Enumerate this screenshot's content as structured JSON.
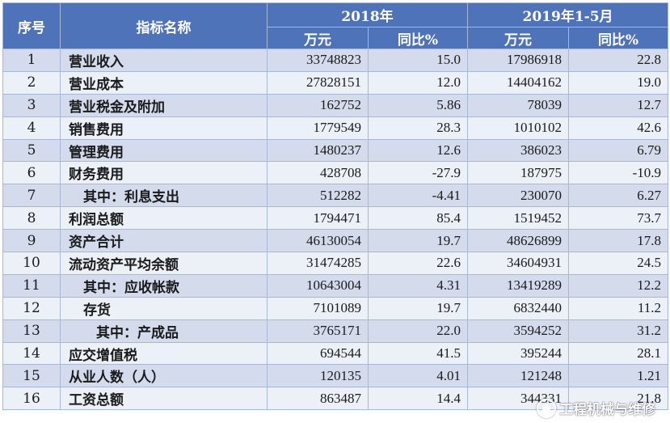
{
  "headers": {
    "seq": "序号",
    "name": "指标名称",
    "period1": "2018年",
    "period2": "2019年1-5月",
    "unit": "万元",
    "yoy": "同比%"
  },
  "rows": [
    {
      "idx": "1",
      "name": "营业收入",
      "level": 0,
      "v1": "33748823",
      "p1": "15.0",
      "v2": "17986918",
      "p2": "22.8"
    },
    {
      "idx": "2",
      "name": "营业成本",
      "level": 0,
      "v1": "27828151",
      "p1": "12.0",
      "v2": "14404162",
      "p2": "19.0"
    },
    {
      "idx": "3",
      "name": "营业税金及附加",
      "level": 0,
      "v1": "162752",
      "p1": "5.86",
      "v2": "78039",
      "p2": "12.7"
    },
    {
      "idx": "4",
      "name": "销售费用",
      "level": 0,
      "v1": "1779549",
      "p1": "28.3",
      "v2": "1010102",
      "p2": "42.6"
    },
    {
      "idx": "5",
      "name": "管理费用",
      "level": 0,
      "v1": "1480237",
      "p1": "12.6",
      "v2": "386023",
      "p2": "6.79"
    },
    {
      "idx": "6",
      "name": "财务费用",
      "level": 0,
      "v1": "428708",
      "p1": "-27.9",
      "v2": "187975",
      "p2": "-10.9"
    },
    {
      "idx": "7",
      "name": "其中：利息支出",
      "level": 1,
      "v1": "512282",
      "p1": "-4.41",
      "v2": "230070",
      "p2": "6.27"
    },
    {
      "idx": "8",
      "name": "利润总额",
      "level": 0,
      "v1": "1794471",
      "p1": "85.4",
      "v2": "1519452",
      "p2": "73.7"
    },
    {
      "idx": "9",
      "name": "资产合计",
      "level": 0,
      "v1": "46130054",
      "p1": "19.7",
      "v2": "48626899",
      "p2": "17.8"
    },
    {
      "idx": "10",
      "name": "流动资产平均余额",
      "level": 0,
      "v1": "31474285",
      "p1": "22.6",
      "v2": "34604931",
      "p2": "24.5"
    },
    {
      "idx": "11",
      "name": "其中：应收帐款",
      "level": 1,
      "v1": "10643004",
      "p1": "4.31",
      "v2": "13419289",
      "p2": "12.2"
    },
    {
      "idx": "12",
      "name": "存货",
      "level": 1,
      "v1": "7101089",
      "p1": "19.7",
      "v2": "6832440",
      "p2": "11.2"
    },
    {
      "idx": "13",
      "name": "其中：产成品",
      "level": 2,
      "v1": "3765171",
      "p1": "22.0",
      "v2": "3594252",
      "p2": "31.2"
    },
    {
      "idx": "14",
      "name": "应交增值税",
      "level": 0,
      "v1": "694544",
      "p1": "41.5",
      "v2": "395244",
      "p2": "28.1"
    },
    {
      "idx": "15",
      "name": "从业人数（人）",
      "level": 0,
      "v1": "120135",
      "p1": "4.01",
      "v2": "121248",
      "p2": "1.21"
    },
    {
      "idx": "16",
      "name": "工资总额",
      "level": 0,
      "v1": "863487",
      "p1": "14.4",
      "v2": "344331",
      "p2": "21.8"
    }
  ],
  "watermark": {
    "text": "工程机械与维修",
    "icon": "wechat-official-account-icon"
  }
}
